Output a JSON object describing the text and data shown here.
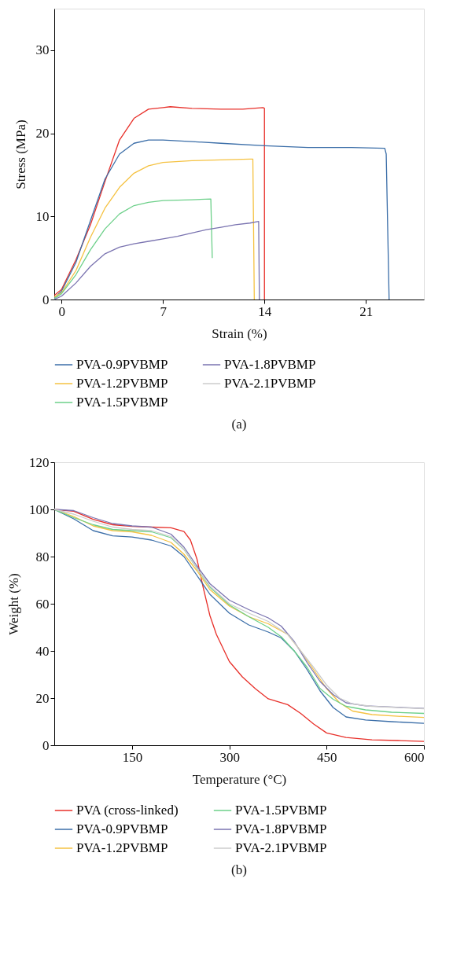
{
  "chart_data": [
    {
      "type": "line",
      "xlabel": "Strain (%)",
      "ylabel": "Stress (MPa)",
      "xlim": [
        -0.5,
        25
      ],
      "ylim": [
        0,
        35
      ],
      "xticks": [
        0,
        7,
        14,
        21
      ],
      "yticks": [
        0,
        10,
        20,
        30
      ],
      "grid": false,
      "legend": "bottom",
      "marker": "none",
      "line_style": "solid",
      "annotations": [
        "(a)"
      ],
      "series": [
        {
          "color": "#e8302a",
          "x": [
            -0.5,
            0,
            1,
            2,
            3,
            4,
            5,
            6,
            7,
            7.5,
            9,
            11,
            12.5,
            13.9,
            14.0,
            14.0
          ],
          "values": [
            0.5,
            1.2,
            4.8,
            9.0,
            14.2,
            19.2,
            21.8,
            22.9,
            23.1,
            23.2,
            23.0,
            22.9,
            22.9,
            23.1,
            23.0,
            0
          ]
        },
        {
          "name": "PVA-0.9PVBMP",
          "color": "#3b6ea8",
          "x": [
            -0.5,
            0,
            1,
            2,
            3,
            4,
            5,
            6,
            7,
            9,
            11,
            14,
            17,
            20,
            22.3,
            22.4,
            22.6
          ],
          "values": [
            0.2,
            1.0,
            4.5,
            9.5,
            14.5,
            17.5,
            18.8,
            19.2,
            19.2,
            19.0,
            18.8,
            18.5,
            18.3,
            18.3,
            18.2,
            17.5,
            0
          ]
        },
        {
          "name": "PVA-1.2PVBMP",
          "color": "#f5c242",
          "x": [
            -0.5,
            0,
            1,
            2,
            3,
            4,
            5,
            6,
            7,
            9,
            11,
            13,
            13.2,
            13.3
          ],
          "values": [
            0.3,
            0.8,
            3.5,
            7.5,
            11,
            13.5,
            15.2,
            16.1,
            16.5,
            16.7,
            16.8,
            16.9,
            16.9,
            0
          ]
        },
        {
          "name": "PVA-1.5PVBMP",
          "color": "#6dd08a",
          "x": [
            -0.5,
            0,
            1,
            2,
            3,
            4,
            5,
            6,
            7,
            9,
            10.3,
            10.4
          ],
          "values": [
            0.1,
            0.7,
            3,
            6,
            8.5,
            10.3,
            11.3,
            11.7,
            11.9,
            12.0,
            12.1,
            5.0
          ]
        },
        {
          "name": "PVA-1.8PVBMP",
          "color": "#7a73b0",
          "x": [
            -0.5,
            0,
            1,
            2,
            3,
            4,
            5,
            6,
            7,
            8,
            9,
            10,
            11,
            12,
            13,
            13.6,
            13.65
          ],
          "values": [
            0,
            0.4,
            2,
            4,
            5.5,
            6.3,
            6.7,
            7.0,
            7.3,
            7.6,
            8.0,
            8.4,
            8.7,
            9.0,
            9.2,
            9.4,
            0
          ]
        },
        {
          "name": "PVA-2.1PVBMP",
          "color": "#cccccc"
        }
      ]
    },
    {
      "type": "line",
      "xlabel": "Temperature (°C)",
      "ylabel": "Weight (%)",
      "xlim": [
        30,
        600
      ],
      "ylim": [
        0,
        120
      ],
      "xticks": [
        150,
        300,
        450,
        600
      ],
      "yticks": [
        0,
        20,
        40,
        60,
        80,
        100,
        120
      ],
      "grid": false,
      "legend": "bottom",
      "marker": "none",
      "line_style": "solid",
      "annotations": [
        "(b)"
      ],
      "series": [
        {
          "name": "PVA (cross-linked)",
          "color": "#e8302a",
          "x": [
            30,
            60,
            90,
            120,
            150,
            180,
            210,
            230,
            240,
            250,
            260,
            270,
            280,
            300,
            320,
            340,
            360,
            390,
            410,
            430,
            450,
            480,
            520,
            560,
            600
          ],
          "values": [
            100,
            99.2,
            95.8,
            93.5,
            92.8,
            92.5,
            92.2,
            90.6,
            87,
            79,
            66.5,
            55,
            47,
            35.5,
            29,
            24,
            19.7,
            17.2,
            13.5,
            9,
            5.2,
            3.3,
            2.3,
            2,
            1.6
          ]
        },
        {
          "name": "PVA-0.9PVBMP",
          "color": "#3b6ea8",
          "x": [
            30,
            60,
            90,
            120,
            150,
            180,
            210,
            230,
            250,
            270,
            300,
            330,
            360,
            380,
            400,
            420,
            440,
            460,
            480,
            510,
            550,
            600
          ],
          "values": [
            100,
            96,
            91,
            88.8,
            88.3,
            87,
            84.5,
            80,
            72,
            64,
            56,
            51,
            48,
            45.5,
            40,
            32,
            23,
            16,
            12,
            10.7,
            10,
            9.3
          ]
        },
        {
          "name": "PVA-1.2PVBMP",
          "color": "#f5c242",
          "x": [
            30,
            60,
            90,
            120,
            150,
            180,
            210,
            230,
            250,
            270,
            300,
            330,
            360,
            390,
            410,
            430,
            450,
            470,
            490,
            520,
            560,
            600
          ],
          "values": [
            100,
            97,
            93,
            91,
            90.5,
            89,
            86,
            81,
            74,
            66,
            59,
            54.5,
            51.5,
            47,
            40,
            32,
            24,
            18,
            14.5,
            13,
            12.3,
            11.8
          ]
        },
        {
          "name": "PVA-1.5PVBMP",
          "color": "#6dd08a",
          "x": [
            30,
            60,
            90,
            120,
            150,
            180,
            210,
            230,
            250,
            270,
            300,
            330,
            360,
            380,
            400,
            420,
            440,
            460,
            480,
            510,
            550,
            600
          ],
          "values": [
            100,
            96.5,
            93.5,
            91.5,
            91,
            90.5,
            88,
            83,
            75,
            67,
            59.5,
            54.5,
            50,
            46,
            40,
            33,
            24,
            19.5,
            16.5,
            15,
            14,
            13.5
          ]
        },
        {
          "name": "PVA-1.8PVBMP",
          "color": "#7a73b0",
          "x": [
            30,
            60,
            90,
            120,
            150,
            180,
            210,
            230,
            250,
            270,
            300,
            330,
            360,
            380,
            400,
            420,
            440,
            460,
            480,
            510,
            550,
            600
          ],
          "values": [
            100,
            99.5,
            96.5,
            94,
            93,
            92.5,
            89.5,
            84,
            76,
            68.5,
            61.5,
            57.5,
            54,
            50.5,
            44,
            35,
            27,
            21.5,
            18,
            16.7,
            16.2,
            15.6
          ]
        },
        {
          "name": "PVA-2.1PVBMP",
          "color": "#cccccc",
          "x": [
            30,
            60,
            90,
            120,
            150,
            180,
            210,
            230,
            250,
            270,
            300,
            330,
            360,
            390,
            410,
            430,
            450,
            470,
            490,
            520,
            560,
            600
          ],
          "values": [
            100,
            98,
            95,
            92.5,
            91.5,
            91,
            88.5,
            83,
            75,
            67.5,
            60,
            56,
            52.5,
            47,
            40,
            33,
            25.5,
            20,
            17.5,
            16.5,
            16,
            15.5
          ]
        }
      ]
    }
  ]
}
